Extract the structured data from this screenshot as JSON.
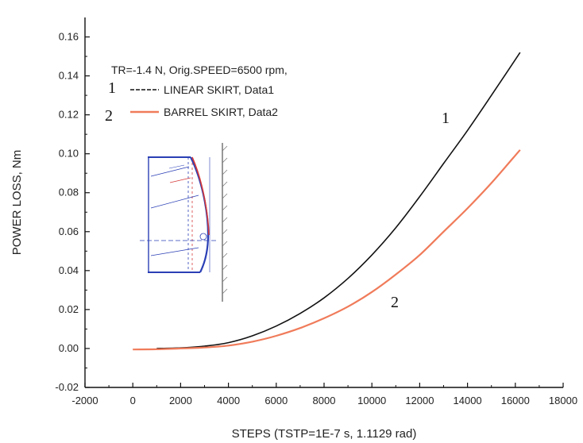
{
  "chart_data": {
    "type": "line",
    "title": "",
    "xlabel": "STEPS (TSTP=1E-7 s, 1.1129 rad)",
    "ylabel": "POWER LOSS, Nm",
    "xlim": [
      -2000,
      18000
    ],
    "ylim": [
      -0.02,
      0.17
    ],
    "x_ticks": [
      -2000,
      0,
      2000,
      4000,
      6000,
      8000,
      10000,
      12000,
      14000,
      16000,
      18000
    ],
    "x_tick_labels": [
      "-2000",
      "0",
      "2000",
      "4000",
      "6000",
      "8000",
      "10000",
      "12000",
      "14000",
      "16000",
      "18000"
    ],
    "y_ticks": [
      -0.02,
      0.0,
      0.02,
      0.04,
      0.06,
      0.08,
      0.1,
      0.12,
      0.14,
      0.16
    ],
    "y_tick_labels": [
      "-0.02",
      "0.00",
      "0.02",
      "0.04",
      "0.06",
      "0.08",
      "0.10",
      "0.12",
      "0.14",
      "0.16"
    ],
    "grid": false,
    "legend": {
      "header": "TR=-1.4 N, Orig.SPEED=6500 rpm,",
      "position": "top-left",
      "entries": [
        {
          "number": "1",
          "label": "LINEAR SKIRT, Data1",
          "color": "#111111",
          "style": "dashed"
        },
        {
          "number": "2",
          "label": "BARREL SKIRT, Data2",
          "color": "#f07b5a",
          "style": "solid"
        }
      ]
    },
    "annotations": [
      {
        "text": "1",
        "series": 0
      },
      {
        "text": "2",
        "series": 1
      }
    ],
    "series": [
      {
        "name": "LINEAR SKIRT, Data1",
        "color": "#111111",
        "x": [
          1000,
          2000,
          3000,
          4000,
          5000,
          6000,
          7000,
          8000,
          9000,
          10000,
          11000,
          12000,
          13000,
          14000,
          15000,
          16200
        ],
        "y": [
          0.0,
          0.0003,
          0.0012,
          0.003,
          0.0065,
          0.0115,
          0.018,
          0.026,
          0.036,
          0.048,
          0.062,
          0.078,
          0.095,
          0.112,
          0.13,
          0.152
        ]
      },
      {
        "name": "BARREL SKIRT, Data2",
        "color": "#f07b5a",
        "x": [
          0,
          1000,
          2000,
          3000,
          4000,
          5000,
          6000,
          7000,
          8000,
          9000,
          10000,
          11000,
          12000,
          13000,
          14000,
          15000,
          16200
        ],
        "y": [
          -0.0005,
          -0.0004,
          0.0,
          0.0005,
          0.0015,
          0.0035,
          0.0065,
          0.0105,
          0.0155,
          0.0215,
          0.029,
          0.038,
          0.048,
          0.06,
          0.072,
          0.085,
          0.102
        ]
      }
    ]
  }
}
